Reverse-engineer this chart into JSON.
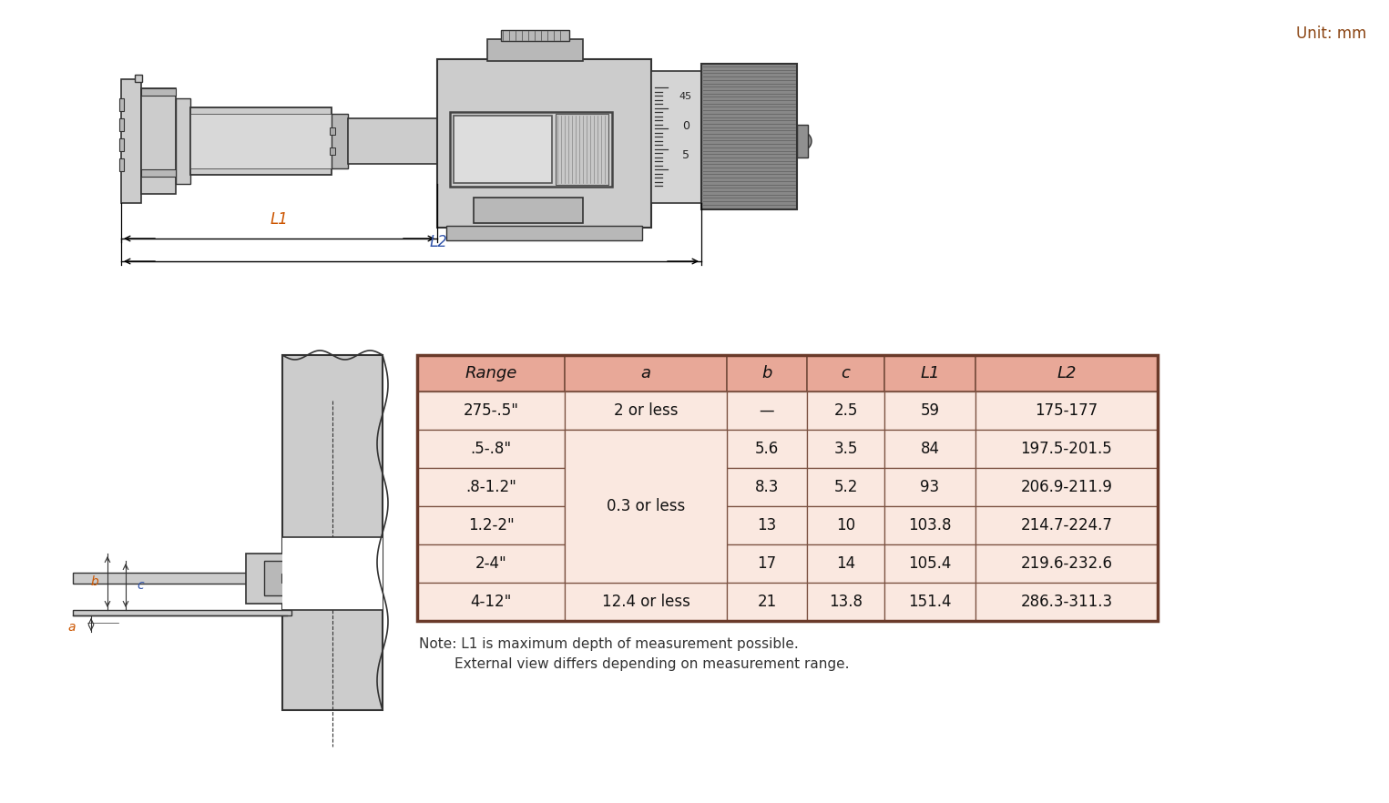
{
  "unit_text": "Unit: mm",
  "unit_color": "#8B4513",
  "table_header_bg": "#E8A898",
  "table_row_bg": "#FAE8E0",
  "table_border_color": "#7A5040",
  "table_header_color": "#000000",
  "table_data_color": "#000000",
  "col_headers": [
    "Range",
    "a",
    "b",
    "c",
    "L1",
    "L2"
  ],
  "rows": [
    [
      "275-.5\"",
      "2 or less",
      "—",
      "2.5",
      "59",
      "175-177"
    ],
    [
      ".5-.8\"",
      "",
      "5.6",
      "3.5",
      "84",
      "197.5-201.5"
    ],
    [
      ".8-1.2\"",
      "",
      "8.3",
      "5.2",
      "93",
      "206.9-211.9"
    ],
    [
      "1.2-2\"",
      "",
      "13",
      "10",
      "103.8",
      "214.7-224.7"
    ],
    [
      "2-4\"",
      "",
      "17",
      "14",
      "105.4",
      "219.6-232.6"
    ],
    [
      "4-12\"",
      "12.4 or less",
      "21",
      "13.8",
      "151.4",
      "286.3-311.3"
    ]
  ],
  "merged_a_text": "0.3 or less",
  "note_line1": "Note: L1 is maximum depth of measurement possible.",
  "note_line2": "        External view differs depending on measurement range.",
  "bg_color": "#FFFFFF",
  "dim_color": "#CC5500",
  "dim_color_blue": "#3355AA",
  "gray_fill": "#CCCCCC",
  "gray_mid": "#B8B8B8",
  "gray_dark": "#909090",
  "gray_knurl": "#888888",
  "line_color": "#333333",
  "dim_line_color": "#000000"
}
